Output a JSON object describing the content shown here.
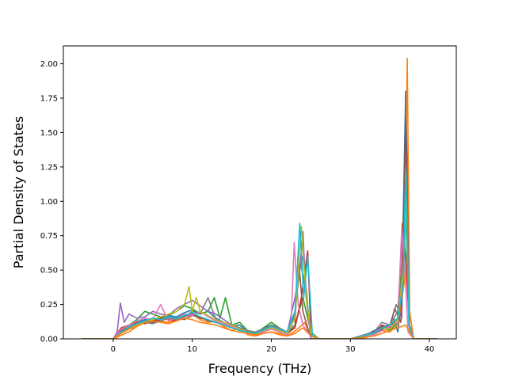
{
  "chart_data": {
    "type": "line",
    "title": "",
    "xlabel": "Frequency (THz)",
    "ylabel": "Partial Density of States",
    "xlim": [
      -6.3,
      43.4
    ],
    "ylim": [
      0.0,
      2.13
    ],
    "xticks": [
      0,
      10,
      20,
      30,
      40
    ],
    "xtick_labels": [
      "0",
      "10",
      "20",
      "30",
      "40"
    ],
    "yticks": [
      0.0,
      0.25,
      0.5,
      0.75,
      1.0,
      1.25,
      1.5,
      1.75,
      2.0
    ],
    "ytick_labels": [
      "0.00",
      "0.25",
      "0.50",
      "0.75",
      "1.00",
      "1.25",
      "1.50",
      "1.75",
      "2.00"
    ],
    "grid": false,
    "legend": "none",
    "series": [
      {
        "color": "#1f77b4",
        "x": [
          -4.0,
          0.0,
          0.6,
          1.2,
          2.0,
          3.0,
          4.0,
          5.0,
          6.0,
          7.0,
          8.0,
          9.0,
          10.0,
          11.0,
          12.0,
          13.0,
          14.0,
          15.0,
          16.0,
          17.0,
          18.0,
          19.0,
          20.0,
          21.0,
          22.0,
          22.6,
          23.0,
          23.5,
          24.0,
          24.5,
          25.0,
          26.0,
          30.0,
          32.0,
          33.0,
          34.0,
          35.0,
          35.5,
          36.0,
          36.5,
          37.0,
          37.2,
          37.5,
          38.0,
          41.0
        ],
        "y": [
          0.0,
          0.0,
          0.04,
          0.08,
          0.1,
          0.12,
          0.14,
          0.13,
          0.15,
          0.17,
          0.16,
          0.19,
          0.21,
          0.18,
          0.2,
          0.15,
          0.12,
          0.09,
          0.1,
          0.05,
          0.03,
          0.08,
          0.1,
          0.06,
          0.03,
          0.1,
          0.2,
          0.5,
          0.6,
          0.3,
          0.0,
          0.0,
          0.0,
          0.03,
          0.06,
          0.09,
          0.1,
          0.15,
          0.05,
          0.3,
          1.8,
          1.2,
          0.1,
          0.0,
          0.0
        ]
      },
      {
        "color": "#ff7f0e",
        "x": [
          -4.0,
          0.0,
          0.8,
          2.0,
          3.0,
          4.0,
          5.0,
          6.0,
          7.0,
          8.0,
          9.0,
          10.0,
          11.0,
          12.0,
          13.0,
          14.0,
          15.0,
          16.0,
          17.0,
          18.0,
          19.0,
          20.0,
          21.0,
          22.0,
          22.8,
          23.5,
          24.2,
          25.0,
          26.0,
          30.0,
          32.0,
          33.0,
          34.0,
          35.0,
          36.0,
          36.8,
          37.2,
          37.5,
          38.0,
          41.0
        ],
        "y": [
          0.0,
          0.0,
          0.02,
          0.05,
          0.09,
          0.12,
          0.14,
          0.13,
          0.12,
          0.14,
          0.16,
          0.18,
          0.14,
          0.12,
          0.13,
          0.09,
          0.06,
          0.08,
          0.03,
          0.02,
          0.04,
          0.05,
          0.03,
          0.02,
          0.05,
          0.08,
          0.12,
          0.02,
          0.0,
          0.0,
          0.01,
          0.03,
          0.06,
          0.05,
          0.1,
          0.4,
          2.04,
          0.2,
          0.0,
          0.0
        ]
      },
      {
        "color": "#2ca02c",
        "x": [
          -4.0,
          0.0,
          1.0,
          2.0,
          3.0,
          4.0,
          5.0,
          6.0,
          7.0,
          8.0,
          9.0,
          10.0,
          11.0,
          12.0,
          12.8,
          13.5,
          14.2,
          15.0,
          16.0,
          17.0,
          18.0,
          20.0,
          21.0,
          22.0,
          23.0,
          24.0,
          25.0,
          26.0,
          30.0,
          33.0,
          34.0,
          35.0,
          36.0,
          37.0,
          37.5,
          38.0,
          41.0
        ],
        "y": [
          0.0,
          0.0,
          0.05,
          0.1,
          0.14,
          0.2,
          0.18,
          0.16,
          0.17,
          0.2,
          0.24,
          0.22,
          0.18,
          0.2,
          0.3,
          0.15,
          0.3,
          0.1,
          0.12,
          0.06,
          0.04,
          0.12,
          0.08,
          0.04,
          0.1,
          0.3,
          0.05,
          0.0,
          0.0,
          0.04,
          0.08,
          0.06,
          0.12,
          0.9,
          0.1,
          0.0,
          0.0
        ]
      },
      {
        "color": "#d62728",
        "x": [
          -4.0,
          0.0,
          1.0,
          2.0,
          3.0,
          4.0,
          5.0,
          6.0,
          7.0,
          8.0,
          9.0,
          10.0,
          11.0,
          12.0,
          13.0,
          14.0,
          15.0,
          16.0,
          17.0,
          18.0,
          20.0,
          21.0,
          22.0,
          23.0,
          23.8,
          24.6,
          25.0,
          26.0,
          30.0,
          33.0,
          34.0,
          35.0,
          36.0,
          36.6,
          37.0,
          37.5,
          38.0,
          41.0
        ],
        "y": [
          0.0,
          0.0,
          0.08,
          0.1,
          0.12,
          0.11,
          0.13,
          0.15,
          0.14,
          0.13,
          0.16,
          0.18,
          0.15,
          0.14,
          0.12,
          0.1,
          0.09,
          0.06,
          0.05,
          0.03,
          0.08,
          0.07,
          0.04,
          0.08,
          0.3,
          0.64,
          0.05,
          0.0,
          0.0,
          0.03,
          0.1,
          0.08,
          0.15,
          0.84,
          0.6,
          0.05,
          0.0,
          0.0
        ]
      },
      {
        "color": "#9467bd",
        "x": [
          -4.0,
          0.0,
          0.5,
          0.9,
          1.4,
          2.0,
          3.0,
          4.0,
          5.0,
          6.0,
          7.0,
          8.0,
          9.0,
          10.0,
          11.0,
          12.0,
          13.0,
          14.0,
          15.0,
          16.0,
          17.0,
          18.0,
          20.0,
          21.0,
          22.0,
          23.0,
          23.6,
          24.0,
          24.4,
          25.0,
          26.0,
          30.0,
          33.0,
          34.0,
          35.0,
          35.8,
          36.5,
          37.0,
          37.5,
          38.0,
          41.0
        ],
        "y": [
          0.0,
          0.0,
          0.05,
          0.26,
          0.12,
          0.18,
          0.15,
          0.16,
          0.2,
          0.18,
          0.17,
          0.22,
          0.25,
          0.28,
          0.24,
          0.2,
          0.18,
          0.14,
          0.1,
          0.08,
          0.06,
          0.04,
          0.1,
          0.08,
          0.04,
          0.3,
          0.5,
          0.78,
          0.3,
          0.0,
          0.0,
          0.0,
          0.05,
          0.08,
          0.1,
          0.25,
          0.15,
          1.4,
          0.1,
          0.0,
          0.0
        ]
      },
      {
        "color": "#8c564b",
        "x": [
          -4.0,
          0.0,
          1.0,
          2.0,
          3.0,
          4.0,
          5.0,
          6.0,
          7.0,
          8.0,
          9.0,
          10.0,
          11.0,
          12.0,
          13.0,
          14.0,
          15.0,
          16.0,
          17.0,
          18.0,
          20.0,
          21.0,
          22.0,
          23.0,
          23.4,
          24.0,
          24.8,
          26.0,
          30.0,
          33.0,
          34.0,
          35.0,
          35.6,
          36.4,
          37.0,
          37.5,
          38.0,
          41.0
        ],
        "y": [
          0.0,
          0.0,
          0.06,
          0.09,
          0.11,
          0.13,
          0.12,
          0.14,
          0.16,
          0.15,
          0.14,
          0.17,
          0.16,
          0.13,
          0.12,
          0.1,
          0.08,
          0.07,
          0.05,
          0.04,
          0.09,
          0.06,
          0.03,
          0.1,
          0.61,
          0.2,
          0.04,
          0.0,
          0.0,
          0.04,
          0.07,
          0.09,
          0.22,
          0.12,
          1.6,
          0.08,
          0.0,
          0.0
        ]
      },
      {
        "color": "#e377c2",
        "x": [
          -4.0,
          0.0,
          1.0,
          2.0,
          3.0,
          4.0,
          5.0,
          6.0,
          7.0,
          8.0,
          9.0,
          10.0,
          11.0,
          12.0,
          13.0,
          14.0,
          15.0,
          16.0,
          17.0,
          18.0,
          20.0,
          21.0,
          22.0,
          22.5,
          22.9,
          23.4,
          24.0,
          25.0,
          26.0,
          30.0,
          33.0,
          34.0,
          35.0,
          36.0,
          36.5,
          36.9,
          37.3,
          38.0,
          41.0
        ],
        "y": [
          0.0,
          0.0,
          0.07,
          0.1,
          0.13,
          0.15,
          0.14,
          0.25,
          0.13,
          0.15,
          0.18,
          0.17,
          0.2,
          0.16,
          0.13,
          0.11,
          0.09,
          0.06,
          0.04,
          0.03,
          0.07,
          0.05,
          0.03,
          0.1,
          0.7,
          0.25,
          0.1,
          0.02,
          0.0,
          0.0,
          0.03,
          0.06,
          0.09,
          0.12,
          0.8,
          0.5,
          0.05,
          0.0,
          0.0
        ]
      },
      {
        "color": "#7f7f7f",
        "x": [
          -4.0,
          0.0,
          1.0,
          2.0,
          3.0,
          4.0,
          5.0,
          6.0,
          7.0,
          8.0,
          9.0,
          10.0,
          11.0,
          12.0,
          13.0,
          14.0,
          15.0,
          16.0,
          17.0,
          18.0,
          20.0,
          21.0,
          22.0,
          23.0,
          23.7,
          24.2,
          25.0,
          26.0,
          30.0,
          33.0,
          34.0,
          35.0,
          36.0,
          36.8,
          37.1,
          37.5,
          38.0,
          41.0
        ],
        "y": [
          0.0,
          0.0,
          0.05,
          0.08,
          0.1,
          0.12,
          0.11,
          0.13,
          0.15,
          0.14,
          0.16,
          0.2,
          0.18,
          0.3,
          0.14,
          0.12,
          0.1,
          0.08,
          0.06,
          0.05,
          0.1,
          0.08,
          0.05,
          0.2,
          0.55,
          0.4,
          0.05,
          0.0,
          0.0,
          0.05,
          0.12,
          0.1,
          0.2,
          0.6,
          1.2,
          0.1,
          0.0,
          0.0
        ]
      },
      {
        "color": "#bcbd22",
        "x": [
          -4.0,
          0.0,
          1.0,
          2.0,
          3.0,
          4.0,
          5.0,
          6.0,
          7.0,
          8.0,
          9.0,
          9.6,
          10.0,
          10.5,
          11.0,
          12.0,
          13.0,
          14.0,
          15.0,
          16.0,
          17.0,
          18.0,
          20.0,
          21.0,
          22.0,
          23.0,
          23.8,
          24.4,
          25.0,
          26.0,
          30.0,
          33.0,
          34.0,
          35.0,
          36.0,
          36.7,
          37.0,
          37.5,
          38.0,
          41.0
        ],
        "y": [
          0.0,
          0.0,
          0.04,
          0.07,
          0.1,
          0.12,
          0.14,
          0.16,
          0.18,
          0.2,
          0.25,
          0.38,
          0.2,
          0.3,
          0.2,
          0.17,
          0.14,
          0.12,
          0.1,
          0.07,
          0.05,
          0.04,
          0.08,
          0.06,
          0.04,
          0.15,
          0.82,
          0.3,
          0.04,
          0.0,
          0.0,
          0.04,
          0.08,
          0.07,
          0.14,
          0.5,
          1.0,
          0.06,
          0.0,
          0.0
        ]
      },
      {
        "color": "#17becf",
        "x": [
          -4.0,
          0.0,
          1.0,
          2.0,
          3.0,
          4.0,
          5.0,
          6.0,
          7.0,
          8.0,
          9.0,
          10.0,
          11.0,
          12.0,
          13.0,
          14.0,
          15.0,
          16.0,
          17.0,
          18.0,
          20.0,
          21.0,
          22.0,
          23.0,
          23.6,
          24.1,
          24.6,
          25.2,
          26.0,
          30.0,
          33.0,
          34.0,
          35.0,
          36.0,
          36.7,
          37.0,
          37.4,
          38.0,
          41.0
        ],
        "y": [
          0.0,
          0.0,
          0.05,
          0.09,
          0.11,
          0.13,
          0.15,
          0.14,
          0.16,
          0.15,
          0.17,
          0.19,
          0.16,
          0.14,
          0.12,
          0.1,
          0.08,
          0.06,
          0.05,
          0.04,
          0.09,
          0.07,
          0.05,
          0.2,
          0.84,
          0.3,
          0.6,
          0.02,
          0.0,
          0.0,
          0.04,
          0.08,
          0.1,
          0.15,
          0.4,
          1.25,
          0.1,
          0.0,
          0.0
        ]
      },
      {
        "color": "#ff7f0e",
        "x": [
          -4.0,
          0.0,
          1.0,
          2.0,
          3.0,
          4.0,
          5.0,
          6.0,
          7.0,
          8.0,
          9.0,
          10.0,
          11.0,
          12.0,
          13.0,
          14.0,
          15.0,
          16.0,
          17.0,
          18.0,
          20.0,
          21.0,
          22.0,
          23.0,
          24.0,
          25.0,
          26.0,
          30.0,
          33.0,
          34.0,
          35.0,
          36.0,
          37.0,
          38.0,
          41.0
        ],
        "y": [
          0.0,
          0.0,
          0.04,
          0.07,
          0.09,
          0.12,
          0.13,
          0.12,
          0.11,
          0.13,
          0.15,
          0.14,
          0.12,
          0.11,
          0.1,
          0.08,
          0.06,
          0.05,
          0.04,
          0.03,
          0.05,
          0.04,
          0.02,
          0.04,
          0.08,
          0.02,
          0.0,
          0.0,
          0.02,
          0.04,
          0.06,
          0.08,
          0.1,
          0.0,
          0.0
        ]
      }
    ]
  }
}
